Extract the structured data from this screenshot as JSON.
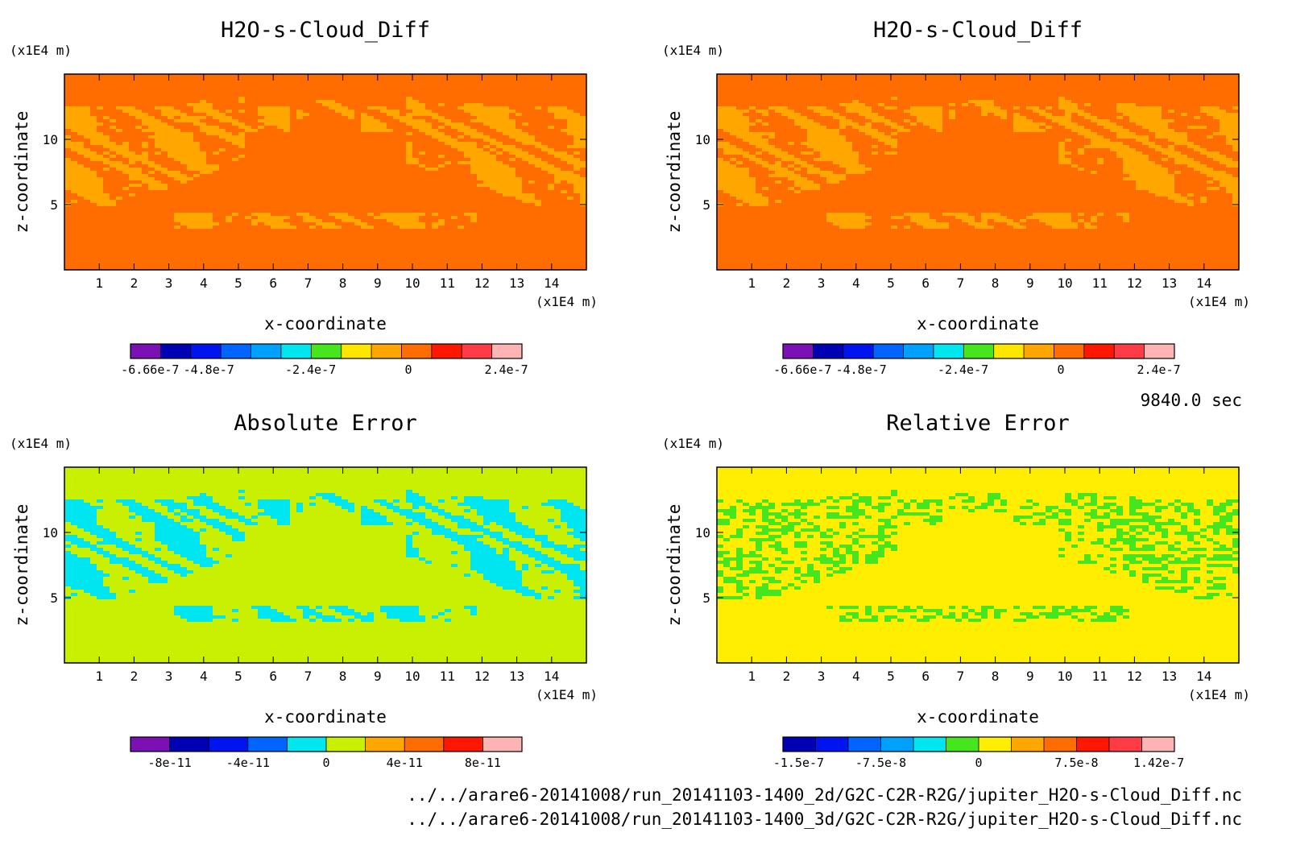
{
  "time_label": "9840.0 sec",
  "files": [
    "../../arare6-20141008/run_20141103-1400_2d/G2C-C2R-R2G/jupiter_H2O-s-Cloud_Diff.nc",
    "../../arare6-20141008/run_20141103-1400_3d/G2C-C2R-R2G/jupiter_H2O-s-Cloud_Diff.nc"
  ],
  "chart_data": [
    {
      "type": "heatmap",
      "title": "H2O-s-Cloud_Diff",
      "xlabel": "x-coordinate",
      "ylabel": "z-coordinate",
      "x_unit": "(x1E4 m)",
      "y_unit": "(x1E4 m)",
      "xlim": [
        0,
        15
      ],
      "ylim": [
        0,
        15
      ],
      "x_ticks": [
        "1",
        "2",
        "3",
        "4",
        "5",
        "6",
        "7",
        "8",
        "9",
        "10",
        "11",
        "12",
        "13",
        "14"
      ],
      "y_ticks": [
        "5",
        "10"
      ],
      "background_color": "#ff6c00",
      "pattern_color": "#ffa600",
      "colorbar": {
        "colors": [
          "#7b10b4",
          "#0000b4",
          "#0014f0",
          "#0064ff",
          "#00a0ff",
          "#00e6f0",
          "#46e61e",
          "#ffe600",
          "#ffa600",
          "#ff6c00",
          "#ff1800",
          "#ff3c46",
          "#ffb4b4"
        ],
        "labels": [
          "-6.66e-7",
          "-4.8e-7",
          "-2.4e-7",
          "0",
          "2.4e-7"
        ]
      }
    },
    {
      "type": "heatmap",
      "title": "H2O-s-Cloud_Diff",
      "xlabel": "x-coordinate",
      "ylabel": "z-coordinate",
      "x_unit": "(x1E4 m)",
      "y_unit": "(x1E4 m)",
      "xlim": [
        0,
        15
      ],
      "ylim": [
        0,
        15
      ],
      "x_ticks": [
        "1",
        "2",
        "3",
        "4",
        "5",
        "6",
        "7",
        "8",
        "9",
        "10",
        "11",
        "12",
        "13",
        "14"
      ],
      "y_ticks": [
        "5",
        "10"
      ],
      "background_color": "#ff6c00",
      "pattern_color": "#ffa600",
      "colorbar": {
        "colors": [
          "#7b10b4",
          "#0000b4",
          "#0014f0",
          "#0064ff",
          "#00a0ff",
          "#00e6f0",
          "#46e61e",
          "#ffe600",
          "#ffa600",
          "#ff6c00",
          "#ff1800",
          "#ff3c46",
          "#ffb4b4"
        ],
        "labels": [
          "-6.66e-7",
          "-4.8e-7",
          "-2.4e-7",
          "0",
          "2.4e-7"
        ]
      }
    },
    {
      "type": "heatmap",
      "title": "Absolute Error",
      "xlabel": "x-coordinate",
      "ylabel": "z-coordinate",
      "x_unit": "(x1E4 m)",
      "y_unit": "(x1E4 m)",
      "xlim": [
        0,
        15
      ],
      "ylim": [
        0,
        15
      ],
      "x_ticks": [
        "1",
        "2",
        "3",
        "4",
        "5",
        "6",
        "7",
        "8",
        "9",
        "10",
        "11",
        "12",
        "13",
        "14"
      ],
      "y_ticks": [
        "5",
        "10"
      ],
      "background_color": "#c8f000",
      "pattern_color": "#00e6f0",
      "colorbar": {
        "colors": [
          "#7b10b4",
          "#0000b4",
          "#0014f0",
          "#0064ff",
          "#00e6f0",
          "#c8f000",
          "#ffa600",
          "#ff6c00",
          "#ff1800",
          "#ffb4b4"
        ],
        "labels": [
          "-8e-11",
          "-4e-11",
          "0",
          "4e-11",
          "8e-11"
        ]
      }
    },
    {
      "type": "heatmap",
      "title": "Relative Error",
      "xlabel": "x-coordinate",
      "ylabel": "z-coordinate",
      "x_unit": "(x1E4 m)",
      "y_unit": "(x1E4 m)",
      "xlim": [
        0,
        15
      ],
      "ylim": [
        0,
        15
      ],
      "x_ticks": [
        "1",
        "2",
        "3",
        "4",
        "5",
        "6",
        "7",
        "8",
        "9",
        "10",
        "11",
        "12",
        "13",
        "14"
      ],
      "y_ticks": [
        "5",
        "10"
      ],
      "background_color": "#ffee00",
      "pattern_color": "#46e61e",
      "colorbar": {
        "colors": [
          "#0000b4",
          "#0014f0",
          "#0064ff",
          "#00a0ff",
          "#00e6f0",
          "#46e61e",
          "#ffee00",
          "#ffa600",
          "#ff6c00",
          "#ff1800",
          "#ff3c46",
          "#ffb4b4"
        ],
        "labels": [
          "-1.5e-7",
          "-7.5e-8",
          "0",
          "7.5e-8",
          "1.42e-7"
        ]
      }
    }
  ]
}
